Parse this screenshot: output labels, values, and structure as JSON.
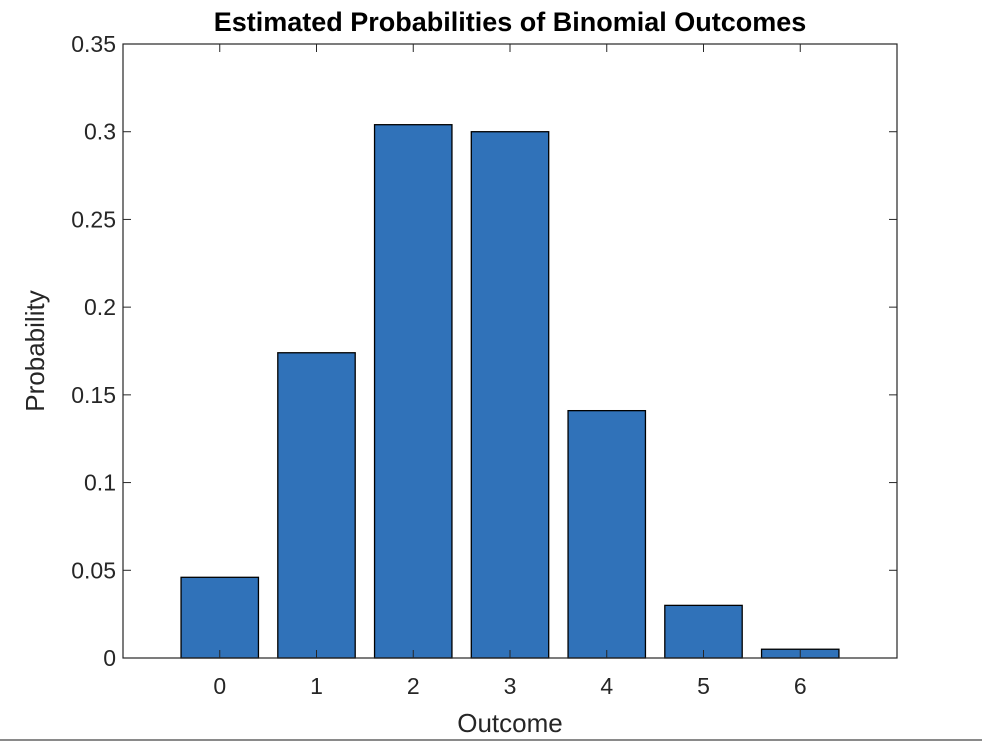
{
  "chart_data": {
    "type": "bar",
    "title": "Estimated Probabilities of Binomial Outcomes",
    "xlabel": "Outcome",
    "ylabel": "Probability",
    "categories": [
      "0",
      "1",
      "2",
      "3",
      "4",
      "5",
      "6"
    ],
    "values": [
      0.046,
      0.174,
      0.304,
      0.3,
      0.141,
      0.03,
      0.005
    ],
    "xlim": [
      -1,
      7
    ],
    "ylim": [
      0,
      0.35
    ],
    "yticks": [
      "0",
      "0.05",
      "0.1",
      "0.15",
      "0.2",
      "0.25",
      "0.3",
      "0.35"
    ],
    "grid": false,
    "bar_color": "#3072B9",
    "bar_edge_color": "#000000"
  }
}
